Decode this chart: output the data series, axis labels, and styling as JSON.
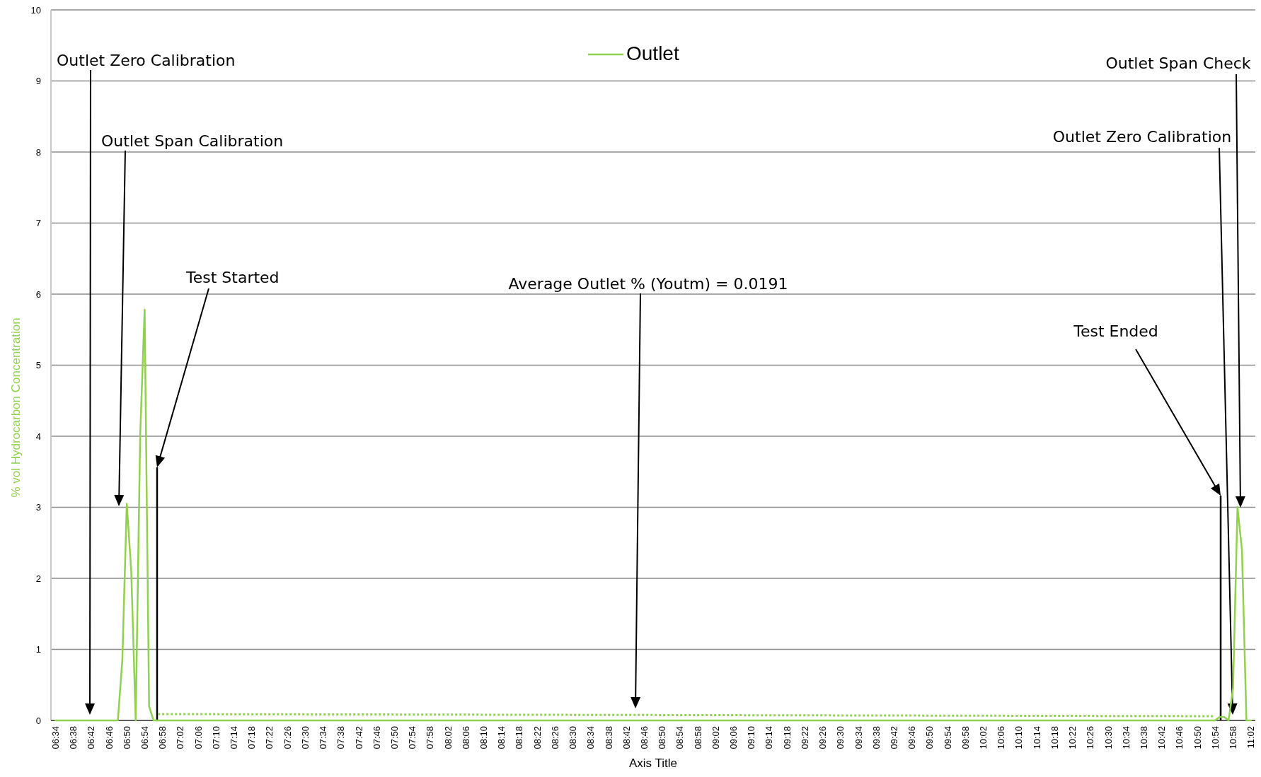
{
  "chart_data": {
    "type": "line",
    "xlabel": "Axis Title",
    "ylabel": "% vol Hydrocarbon Concentration",
    "xlim": [
      6.55,
      11.05
    ],
    "ylim": [
      0,
      10
    ],
    "yticks": [
      0,
      1,
      2,
      3,
      4,
      5,
      6,
      7,
      8,
      9,
      10
    ],
    "xticks": [
      {
        "value": 6.5667,
        "label": "06:34"
      },
      {
        "value": 6.6333,
        "label": "06:38"
      },
      {
        "value": 6.7,
        "label": "06:42"
      },
      {
        "value": 6.7667,
        "label": "06:46"
      },
      {
        "value": 6.8333,
        "label": "06:50"
      },
      {
        "value": 6.9,
        "label": "06:54"
      },
      {
        "value": 6.9667,
        "label": "06:58"
      },
      {
        "value": 7.0333,
        "label": "07:02"
      },
      {
        "value": 7.1,
        "label": "07:06"
      },
      {
        "value": 7.1667,
        "label": "07:10"
      },
      {
        "value": 7.2333,
        "label": "07:14"
      },
      {
        "value": 7.3,
        "label": "07:18"
      },
      {
        "value": 7.3667,
        "label": "07:22"
      },
      {
        "value": 7.4333,
        "label": "07:26"
      },
      {
        "value": 7.5,
        "label": "07:30"
      },
      {
        "value": 7.5667,
        "label": "07:34"
      },
      {
        "value": 7.6333,
        "label": "07:38"
      },
      {
        "value": 7.7,
        "label": "07:42"
      },
      {
        "value": 7.7667,
        "label": "07:46"
      },
      {
        "value": 7.8333,
        "label": "07:50"
      },
      {
        "value": 7.9,
        "label": "07:54"
      },
      {
        "value": 7.9667,
        "label": "07:58"
      },
      {
        "value": 8.0333,
        "label": "08:02"
      },
      {
        "value": 8.1,
        "label": "08:06"
      },
      {
        "value": 8.1667,
        "label": "08:10"
      },
      {
        "value": 8.2333,
        "label": "08:14"
      },
      {
        "value": 8.3,
        "label": "08:18"
      },
      {
        "value": 8.3667,
        "label": "08:22"
      },
      {
        "value": 8.4333,
        "label": "08:26"
      },
      {
        "value": 8.5,
        "label": "08:30"
      },
      {
        "value": 8.5667,
        "label": "08:34"
      },
      {
        "value": 8.6333,
        "label": "08:38"
      },
      {
        "value": 8.7,
        "label": "08:42"
      },
      {
        "value": 8.7667,
        "label": "08:46"
      },
      {
        "value": 8.8333,
        "label": "08:50"
      },
      {
        "value": 8.9,
        "label": "08:54"
      },
      {
        "value": 8.9667,
        "label": "08:58"
      },
      {
        "value": 9.0333,
        "label": "09:02"
      },
      {
        "value": 9.1,
        "label": "09:06"
      },
      {
        "value": 9.1667,
        "label": "09:10"
      },
      {
        "value": 9.2333,
        "label": "09:14"
      },
      {
        "value": 9.3,
        "label": "09:18"
      },
      {
        "value": 9.3667,
        "label": "09:22"
      },
      {
        "value": 9.4333,
        "label": "09:26"
      },
      {
        "value": 9.5,
        "label": "09:30"
      },
      {
        "value": 9.5667,
        "label": "09:34"
      },
      {
        "value": 9.6333,
        "label": "09:38"
      },
      {
        "value": 9.7,
        "label": "09:42"
      },
      {
        "value": 9.7667,
        "label": "09:46"
      },
      {
        "value": 9.8333,
        "label": "09:50"
      },
      {
        "value": 9.9,
        "label": "09:54"
      },
      {
        "value": 9.9667,
        "label": "09:58"
      },
      {
        "value": 10.0333,
        "label": "10:02"
      },
      {
        "value": 10.1,
        "label": "10:06"
      },
      {
        "value": 10.1667,
        "label": "10:10"
      },
      {
        "value": 10.2333,
        "label": "10:14"
      },
      {
        "value": 10.3,
        "label": "10:18"
      },
      {
        "value": 10.3667,
        "label": "10:22"
      },
      {
        "value": 10.4333,
        "label": "10:26"
      },
      {
        "value": 10.5,
        "label": "10:30"
      },
      {
        "value": 10.5667,
        "label": "10:34"
      },
      {
        "value": 10.6333,
        "label": "10:38"
      },
      {
        "value": 10.7,
        "label": "10:42"
      },
      {
        "value": 10.7667,
        "label": "10:46"
      },
      {
        "value": 10.8333,
        "label": "10:50"
      },
      {
        "value": 10.9,
        "label": "10:54"
      },
      {
        "value": 10.9667,
        "label": "10:58"
      },
      {
        "value": 11.0333,
        "label": "11:02"
      }
    ],
    "grid": "y",
    "legend": "top",
    "marker": "none",
    "series": [
      {
        "name": "Outlet",
        "color": "#92d050",
        "line_style": "solid",
        "x": [
          6.5667,
          6.8,
          6.8167,
          6.8333,
          6.85,
          6.8667,
          6.8833,
          6.9,
          6.9167,
          6.9333,
          10.9,
          10.9167,
          10.9333,
          10.95,
          10.9667,
          10.9833,
          11.0,
          11.0167,
          11.0333
        ],
        "values": [
          0,
          0,
          0.85,
          3.05,
          2.1,
          0,
          4.0,
          5.78,
          0.2,
          0,
          0,
          0.05,
          0.05,
          0,
          0.45,
          3.0,
          2.4,
          0,
          0
        ]
      },
      {
        "color": "#92d050",
        "line_style": "dotted",
        "x": [
          6.95,
          10.9
        ],
        "values": [
          0.09,
          0.06
        ]
      }
    ],
    "annotations": [
      "Outlet Zero Calibration",
      "Outlet Span Calibration",
      "Test Started",
      "Average Outlet % (Youtm) = 0.0191",
      "Test Ended",
      "Outlet Zero Calibration",
      "Outlet Span Check"
    ]
  }
}
